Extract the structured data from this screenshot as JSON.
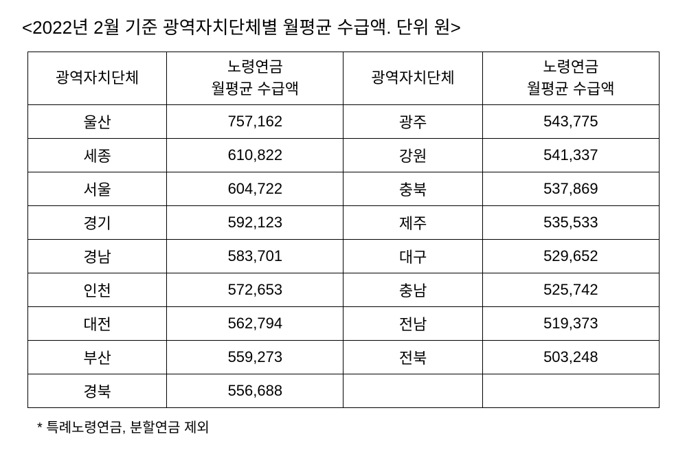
{
  "title": "<2022년 2월 기준 광역자치단체별 월평균 수급액. 단위 원>",
  "table": {
    "headers": {
      "region": "광역자치단체",
      "amount_line1": "노령연금",
      "amount_line2": "월평균 수급액"
    },
    "rows": [
      {
        "l_region": "울산",
        "l_amount": "757,162",
        "r_region": "광주",
        "r_amount": "543,775"
      },
      {
        "l_region": "세종",
        "l_amount": "610,822",
        "r_region": "강원",
        "r_amount": "541,337"
      },
      {
        "l_region": "서울",
        "l_amount": "604,722",
        "r_region": "충북",
        "r_amount": "537,869"
      },
      {
        "l_region": "경기",
        "l_amount": "592,123",
        "r_region": "제주",
        "r_amount": "535,533"
      },
      {
        "l_region": "경남",
        "l_amount": "583,701",
        "r_region": "대구",
        "r_amount": "529,652"
      },
      {
        "l_region": "인천",
        "l_amount": "572,653",
        "r_region": "충남",
        "r_amount": "525,742"
      },
      {
        "l_region": "대전",
        "l_amount": "562,794",
        "r_region": "전남",
        "r_amount": "519,373"
      },
      {
        "l_region": "부산",
        "l_amount": "559,273",
        "r_region": "전북",
        "r_amount": "503,248"
      },
      {
        "l_region": "경북",
        "l_amount": "556,688",
        "r_region": "",
        "r_amount": ""
      }
    ]
  },
  "footnote": "* 특례노령연금, 분할연금 제외"
}
